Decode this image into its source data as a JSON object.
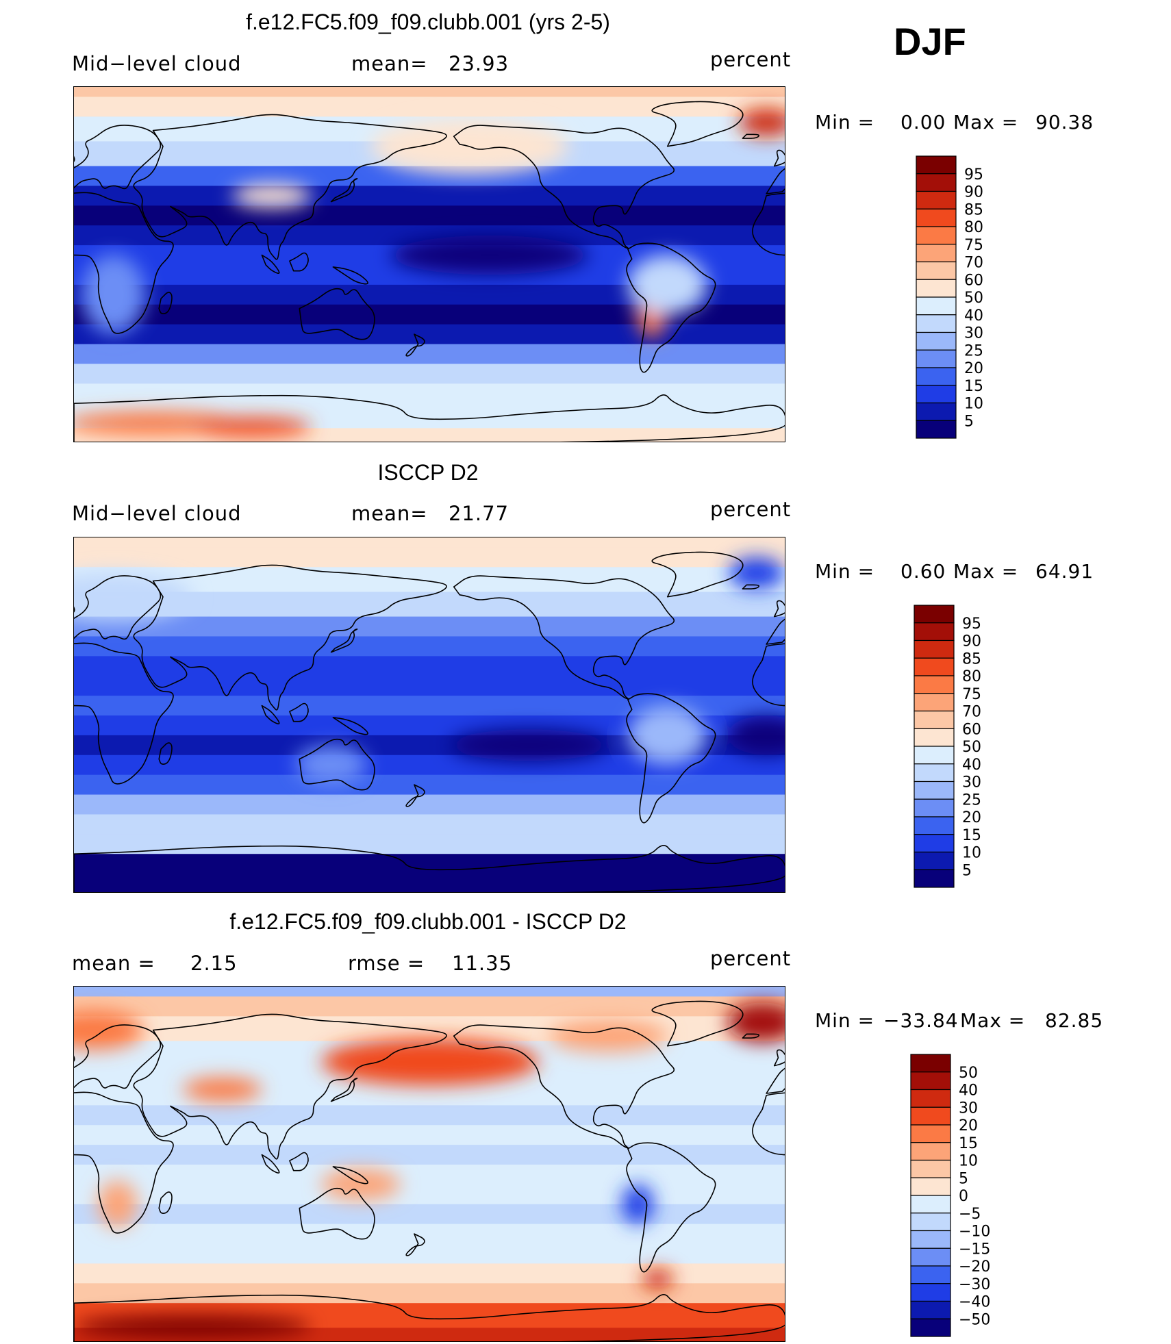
{
  "season": "DJF",
  "palette": {
    "standard": [
      "#08007a",
      "#0c1ab0",
      "#1f3de6",
      "#3b63f0",
      "#6c8ef5",
      "#9bb8fa",
      "#c2d9fc",
      "#dceefd",
      "#fde5d2",
      "#fcc7a6",
      "#fca478",
      "#fb7a45",
      "#f04a1e",
      "#cf2a10",
      "#a30f08",
      "#7a0000"
    ],
    "continent_line": "#000000",
    "frame": "#000000"
  },
  "chart_data": [
    {
      "type": "heatmap",
      "title": "f.e12.FC5.f09_f09.clubb.001 (yrs 2-5)",
      "subtitle_left": "Mid−level cloud",
      "subtitle_center_label": "mean=",
      "subtitle_center_value": "23.93",
      "units": "percent",
      "min_label": "Min  =",
      "min_value": "0.00",
      "max_label": "Max  =",
      "max_value": "90.38",
      "colorbar_levels": [
        "95",
        "90",
        "85",
        "80",
        "75",
        "70",
        "60",
        "50",
        "40",
        "30",
        "25",
        "20",
        "15",
        "10",
        "5"
      ],
      "x_range": [
        0,
        360
      ],
      "y_range": [
        -90,
        90
      ],
      "zonal_profile": [
        {
          "lat": 90,
          "level": 9
        },
        {
          "lat": 80,
          "level": 8
        },
        {
          "lat": 70,
          "level": 7
        },
        {
          "lat": 55,
          "level": 6
        },
        {
          "lat": 45,
          "level": 3
        },
        {
          "lat": 35,
          "level": 1
        },
        {
          "lat": 25,
          "level": 0
        },
        {
          "lat": 15,
          "level": 1
        },
        {
          "lat": 5,
          "level": 2
        },
        {
          "lat": -5,
          "level": 2
        },
        {
          "lat": -15,
          "level": 1
        },
        {
          "lat": -25,
          "level": 0
        },
        {
          "lat": -35,
          "level": 1
        },
        {
          "lat": -45,
          "level": 4
        },
        {
          "lat": -55,
          "level": 6
        },
        {
          "lat": -65,
          "level": 7
        },
        {
          "lat": -75,
          "level": 7
        },
        {
          "lat": -90,
          "level": 8
        }
      ],
      "features": [
        {
          "lon": 350,
          "lat": 72,
          "w": 14,
          "h": 7,
          "level": 13
        },
        {
          "lon": 200,
          "lat": 60,
          "w": 50,
          "h": 14,
          "level": 8
        },
        {
          "lon": 40,
          "lat": -80,
          "w": 45,
          "h": 6,
          "level": 11
        },
        {
          "lon": 90,
          "lat": -82,
          "w": 30,
          "h": 5,
          "level": 12
        },
        {
          "lon": 292,
          "lat": -22,
          "w": 8,
          "h": 15,
          "level": 11
        },
        {
          "lon": 300,
          "lat": -10,
          "w": 20,
          "h": 15,
          "level": 6
        },
        {
          "lon": 20,
          "lat": -15,
          "w": 16,
          "h": 20,
          "level": 4
        },
        {
          "lon": 210,
          "lat": 5,
          "w": 50,
          "h": 10,
          "level": 0
        },
        {
          "lon": 100,
          "lat": 35,
          "w": 20,
          "h": 6,
          "level": 8
        }
      ]
    },
    {
      "type": "heatmap",
      "title": "ISCCP D2",
      "subtitle_left": "Mid−level cloud",
      "subtitle_center_label": "mean=",
      "subtitle_center_value": "21.77",
      "units": "percent",
      "min_label": "Min  =",
      "min_value": "0.60",
      "max_label": "Max  =",
      "max_value": "64.91",
      "colorbar_levels": [
        "95",
        "90",
        "85",
        "80",
        "75",
        "70",
        "60",
        "50",
        "40",
        "30",
        "25",
        "20",
        "15",
        "10",
        "5"
      ],
      "x_range": [
        0,
        360
      ],
      "y_range": [
        -90,
        90
      ],
      "zonal_profile": [
        {
          "lat": 90,
          "level": 8
        },
        {
          "lat": 80,
          "level": 8
        },
        {
          "lat": 70,
          "level": 7
        },
        {
          "lat": 55,
          "level": 6
        },
        {
          "lat": 45,
          "level": 4
        },
        {
          "lat": 35,
          "level": 3
        },
        {
          "lat": 25,
          "level": 2
        },
        {
          "lat": 15,
          "level": 2
        },
        {
          "lat": 5,
          "level": 3
        },
        {
          "lat": -5,
          "level": 2
        },
        {
          "lat": -15,
          "level": 1
        },
        {
          "lat": -25,
          "level": 2
        },
        {
          "lat": -35,
          "level": 3
        },
        {
          "lat": -45,
          "level": 5
        },
        {
          "lat": -55,
          "level": 6
        },
        {
          "lat": -65,
          "level": 6
        },
        {
          "lat": -75,
          "level": 0
        },
        {
          "lat": -90,
          "level": 0
        }
      ],
      "features": [
        {
          "lon": 345,
          "lat": 72,
          "w": 14,
          "h": 8,
          "level": 2
        },
        {
          "lon": 230,
          "lat": -15,
          "w": 40,
          "h": 8,
          "level": 0
        },
        {
          "lon": 350,
          "lat": -10,
          "w": 20,
          "h": 10,
          "level": 0
        },
        {
          "lon": 20,
          "lat": 60,
          "w": 40,
          "h": 12,
          "level": 6
        },
        {
          "lon": 300,
          "lat": -10,
          "w": 20,
          "h": 15,
          "level": 5
        },
        {
          "lon": 130,
          "lat": -25,
          "w": 18,
          "h": 10,
          "level": 4
        }
      ]
    },
    {
      "type": "heatmap",
      "title": "f.e12.FC5.f09_f09.clubb.001 - ISCCP D2",
      "subtitle_left_label": "mean =",
      "subtitle_left_value": "2.15",
      "subtitle_center_label": "rmse  =",
      "subtitle_center_value": "11.35",
      "units": "percent",
      "min_label": "Min  =",
      "min_value": "−33.84",
      "max_label": "Max  =",
      "max_value": "82.85",
      "colorbar_levels": [
        "50",
        "40",
        "30",
        "20",
        "15",
        "10",
        "5",
        "0",
        "−5",
        "−10",
        "−15",
        "−20",
        "−30",
        "−40",
        "−50"
      ],
      "x_range": [
        0,
        360
      ],
      "y_range": [
        -90,
        90
      ],
      "zonal_profile": [
        {
          "lat": 90,
          "level": 5
        },
        {
          "lat": 80,
          "level": 9
        },
        {
          "lat": 70,
          "level": 8
        },
        {
          "lat": 55,
          "level": 7
        },
        {
          "lat": 45,
          "level": 7
        },
        {
          "lat": 35,
          "level": 7
        },
        {
          "lat": 25,
          "level": 6
        },
        {
          "lat": 15,
          "level": 7
        },
        {
          "lat": 5,
          "level": 6
        },
        {
          "lat": -5,
          "level": 7
        },
        {
          "lat": -15,
          "level": 7
        },
        {
          "lat": -25,
          "level": 6
        },
        {
          "lat": -35,
          "level": 7
        },
        {
          "lat": -45,
          "level": 7
        },
        {
          "lat": -55,
          "level": 8
        },
        {
          "lat": -65,
          "level": 9
        },
        {
          "lat": -75,
          "level": 12
        },
        {
          "lat": -90,
          "level": 13
        }
      ],
      "features": [
        {
          "lon": 180,
          "lat": 52,
          "w": 55,
          "h": 12,
          "level": 12
        },
        {
          "lon": 348,
          "lat": 72,
          "w": 18,
          "h": 10,
          "level": 14
        },
        {
          "lon": 10,
          "lat": 68,
          "w": 25,
          "h": 10,
          "level": 11
        },
        {
          "lon": 75,
          "lat": 38,
          "w": 20,
          "h": 6,
          "level": 11
        },
        {
          "lon": 270,
          "lat": 65,
          "w": 30,
          "h": 8,
          "level": 10
        },
        {
          "lon": 285,
          "lat": -20,
          "w": 8,
          "h": 10,
          "level": 2
        },
        {
          "lon": 145,
          "lat": -10,
          "w": 20,
          "h": 8,
          "level": 10
        },
        {
          "lon": 22,
          "lat": -20,
          "w": 10,
          "h": 12,
          "level": 10
        },
        {
          "lon": 60,
          "lat": -82,
          "w": 60,
          "h": 6,
          "level": 15
        },
        {
          "lon": 295,
          "lat": -58,
          "w": 8,
          "h": 5,
          "level": 13
        }
      ]
    }
  ]
}
